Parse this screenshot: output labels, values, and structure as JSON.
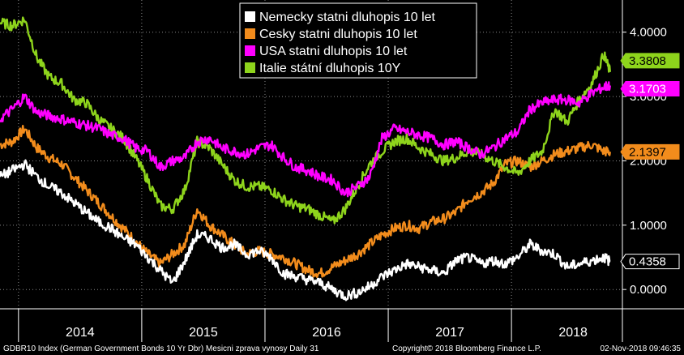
{
  "chart_data": {
    "type": "line",
    "title": "",
    "xlabel": "",
    "ylabel": "",
    "x_start": 2013.8,
    "x_end": 2018.85,
    "x_ticks": [
      {
        "value": 2014.45,
        "label": "2014"
      },
      {
        "value": 2015.45,
        "label": "2015"
      },
      {
        "value": 2016.45,
        "label": "2016"
      },
      {
        "value": 2017.45,
        "label": "2017"
      },
      {
        "value": 2018.45,
        "label": "2018"
      }
    ],
    "x_separators": [
      2013.95,
      2014.95,
      2015.95,
      2016.95,
      2017.95
    ],
    "ylim": [
      -0.3,
      4.5
    ],
    "y_ticks": [
      {
        "value": 4.0,
        "label": "4.0000"
      },
      {
        "value": 3.0,
        "label": "3.0000"
      },
      {
        "value": 2.0,
        "label": "2.0000"
      },
      {
        "value": 1.0,
        "label": "1.0000"
      },
      {
        "value": 0.0,
        "label": "0.0000"
      }
    ],
    "grid": true,
    "legend_position": "top-center",
    "series": [
      {
        "name": "Nemecky statni dluhopis 10 let",
        "color": "#ffffff",
        "end_label": "0.4358",
        "end_value": 0.4358,
        "x": [
          2013.8,
          2013.9,
          2014.0,
          2014.1,
          2014.2,
          2014.3,
          2014.4,
          2014.5,
          2014.6,
          2014.7,
          2014.8,
          2014.9,
          2015.0,
          2015.1,
          2015.2,
          2015.3,
          2015.4,
          2015.5,
          2015.6,
          2015.7,
          2015.8,
          2015.9,
          2016.0,
          2016.1,
          2016.2,
          2016.3,
          2016.4,
          2016.5,
          2016.6,
          2016.7,
          2016.8,
          2016.9,
          2017.0,
          2017.1,
          2017.2,
          2017.3,
          2017.4,
          2017.5,
          2017.6,
          2017.7,
          2017.8,
          2017.9,
          2018.0,
          2018.1,
          2018.2,
          2018.3,
          2018.4,
          2018.5,
          2018.6,
          2018.7,
          2018.75
        ],
        "values": [
          1.75,
          1.85,
          1.95,
          1.75,
          1.6,
          1.5,
          1.35,
          1.2,
          1.05,
          0.95,
          0.8,
          0.7,
          0.5,
          0.3,
          0.1,
          0.45,
          0.85,
          0.8,
          0.65,
          0.7,
          0.55,
          0.6,
          0.5,
          0.25,
          0.2,
          0.15,
          0.1,
          0.0,
          -0.1,
          -0.05,
          0.05,
          0.2,
          0.3,
          0.4,
          0.35,
          0.3,
          0.25,
          0.45,
          0.5,
          0.4,
          0.45,
          0.4,
          0.5,
          0.7,
          0.6,
          0.55,
          0.35,
          0.4,
          0.45,
          0.5,
          0.4358
        ]
      },
      {
        "name": "Cesky statni dluhopis 10 let",
        "color": "#f28c1c",
        "end_label": "2.1397",
        "end_value": 2.1397,
        "x": [
          2013.8,
          2013.9,
          2014.0,
          2014.1,
          2014.2,
          2014.3,
          2014.4,
          2014.5,
          2014.6,
          2014.7,
          2014.8,
          2014.9,
          2015.0,
          2015.1,
          2015.2,
          2015.3,
          2015.4,
          2015.5,
          2015.6,
          2015.7,
          2015.8,
          2015.9,
          2016.0,
          2016.1,
          2016.2,
          2016.3,
          2016.4,
          2016.5,
          2016.6,
          2016.7,
          2016.8,
          2016.9,
          2017.0,
          2017.1,
          2017.2,
          2017.3,
          2017.4,
          2017.5,
          2017.6,
          2017.7,
          2017.8,
          2017.9,
          2018.0,
          2018.1,
          2018.2,
          2018.3,
          2018.4,
          2018.5,
          2018.6,
          2018.7,
          2018.75
        ],
        "values": [
          2.25,
          2.3,
          2.5,
          2.2,
          2.05,
          1.95,
          1.75,
          1.55,
          1.35,
          1.15,
          0.95,
          0.75,
          0.55,
          0.4,
          0.55,
          0.7,
          1.25,
          1.0,
          0.85,
          0.7,
          0.55,
          0.6,
          0.55,
          0.5,
          0.4,
          0.3,
          0.25,
          0.35,
          0.45,
          0.55,
          0.7,
          0.85,
          0.95,
          1.0,
          0.95,
          1.05,
          1.1,
          1.2,
          1.4,
          1.5,
          1.65,
          1.95,
          2.0,
          1.9,
          2.0,
          2.1,
          2.15,
          2.2,
          2.25,
          2.15,
          2.1397
        ]
      },
      {
        "name": "USA statni dluhopis 10 let",
        "color": "#ff00ff",
        "end_label": "3.1703",
        "end_value": 3.1703,
        "x": [
          2013.8,
          2013.9,
          2014.0,
          2014.1,
          2014.2,
          2014.3,
          2014.4,
          2014.5,
          2014.6,
          2014.7,
          2014.8,
          2014.9,
          2015.0,
          2015.1,
          2015.2,
          2015.3,
          2015.4,
          2015.5,
          2015.6,
          2015.7,
          2015.8,
          2015.9,
          2016.0,
          2016.1,
          2016.2,
          2016.3,
          2016.4,
          2016.5,
          2016.6,
          2016.7,
          2016.8,
          2016.9,
          2017.0,
          2017.1,
          2017.2,
          2017.3,
          2017.4,
          2017.5,
          2017.6,
          2017.7,
          2017.8,
          2017.9,
          2018.0,
          2018.1,
          2018.2,
          2018.3,
          2018.4,
          2018.5,
          2018.6,
          2018.7,
          2018.75
        ],
        "values": [
          2.65,
          2.8,
          3.0,
          2.75,
          2.7,
          2.65,
          2.6,
          2.55,
          2.5,
          2.4,
          2.35,
          2.2,
          2.15,
          1.9,
          2.0,
          2.05,
          2.3,
          2.35,
          2.2,
          2.15,
          2.1,
          2.2,
          2.25,
          2.05,
          1.9,
          1.85,
          1.75,
          1.7,
          1.5,
          1.6,
          1.75,
          2.35,
          2.5,
          2.45,
          2.4,
          2.35,
          2.25,
          2.3,
          2.2,
          2.1,
          2.2,
          2.35,
          2.45,
          2.8,
          2.9,
          2.95,
          2.95,
          2.9,
          3.05,
          3.15,
          3.1703
        ]
      },
      {
        "name": "Italie státní dluhopis 10Y",
        "color": "#8ed41c",
        "end_label": "3.3808",
        "end_value": 3.3808,
        "x": [
          2013.8,
          2013.9,
          2014.0,
          2014.1,
          2014.2,
          2014.3,
          2014.4,
          2014.5,
          2014.6,
          2014.7,
          2014.8,
          2014.9,
          2015.0,
          2015.1,
          2015.2,
          2015.3,
          2015.4,
          2015.5,
          2015.6,
          2015.7,
          2015.8,
          2015.9,
          2016.0,
          2016.1,
          2016.2,
          2016.3,
          2016.4,
          2016.5,
          2016.6,
          2016.7,
          2016.8,
          2016.9,
          2017.0,
          2017.1,
          2017.2,
          2017.3,
          2017.4,
          2017.5,
          2017.6,
          2017.7,
          2017.8,
          2017.9,
          2018.0,
          2018.1,
          2018.2,
          2018.3,
          2018.4,
          2018.5,
          2018.6,
          2018.7,
          2018.75
        ],
        "values": [
          4.15,
          4.1,
          4.2,
          3.6,
          3.3,
          3.2,
          2.95,
          2.9,
          2.65,
          2.5,
          2.35,
          2.05,
          1.7,
          1.3,
          1.25,
          1.55,
          2.3,
          2.2,
          1.95,
          1.7,
          1.6,
          1.6,
          1.55,
          1.4,
          1.3,
          1.25,
          1.15,
          1.05,
          1.25,
          1.6,
          1.95,
          2.15,
          2.3,
          2.35,
          2.2,
          2.1,
          2.0,
          2.05,
          2.15,
          2.1,
          2.0,
          1.9,
          1.8,
          2.0,
          2.15,
          2.8,
          2.6,
          2.95,
          3.2,
          3.65,
          3.3808
        ]
      }
    ]
  },
  "footer": {
    "left": "GDBR10 Index (German Government Bonds 10 Yr Dbr) Mesicni zprava vynosy  Daily 31",
    "center": "Copyright© 2018 Bloomberg Finance L.P.",
    "right": "02-Nov-2018 09:46:35"
  }
}
